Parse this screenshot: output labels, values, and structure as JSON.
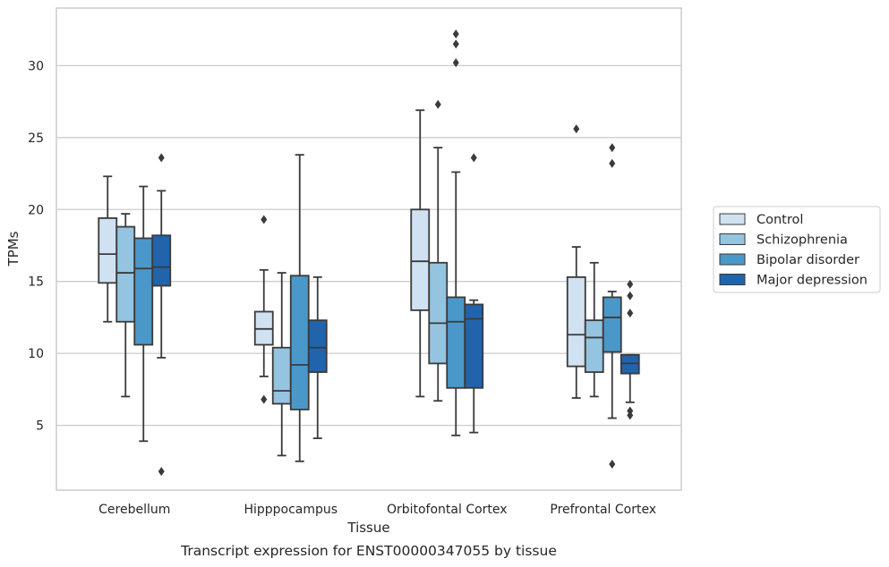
{
  "chart_data": {
    "type": "box",
    "caption": "Transcript expression for ENST00000347055 by tissue",
    "xlabel": "Tissue",
    "ylabel": "TPMs",
    "ylim": [
      0.5,
      34.0
    ],
    "yticks": [
      5,
      10,
      15,
      20,
      25,
      30
    ],
    "grid": "horizontal",
    "legend_position": "right",
    "categories": [
      "Cerebellum",
      "Hipppocampus",
      "Orbitofontal Cortex",
      "Prefrontal Cortex"
    ],
    "series": [
      {
        "name": "Control",
        "color": "#d0e1f2",
        "boxes": [
          {
            "whisker_low": 12.2,
            "q1": 14.9,
            "median": 16.9,
            "q3": 19.4,
            "whisker_high": 22.3,
            "outliers": []
          },
          {
            "whisker_low": 8.4,
            "q1": 10.6,
            "median": 11.7,
            "q3": 12.9,
            "whisker_high": 15.8,
            "outliers": [
              19.3,
              6.8
            ]
          },
          {
            "whisker_low": 7.0,
            "q1": 13.0,
            "median": 16.4,
            "q3": 20.0,
            "whisker_high": 26.9,
            "outliers": []
          },
          {
            "whisker_low": 6.9,
            "q1": 9.1,
            "median": 11.3,
            "q3": 15.3,
            "whisker_high": 17.4,
            "outliers": [
              25.6
            ]
          }
        ]
      },
      {
        "name": "Schizophrenia",
        "color": "#94c4df",
        "boxes": [
          {
            "whisker_low": 7.0,
            "q1": 12.2,
            "median": 15.6,
            "q3": 18.8,
            "whisker_high": 19.7,
            "outliers": []
          },
          {
            "whisker_low": 2.9,
            "q1": 6.5,
            "median": 7.4,
            "q3": 10.4,
            "whisker_high": 15.6,
            "outliers": []
          },
          {
            "whisker_low": 6.7,
            "q1": 9.3,
            "median": 12.1,
            "q3": 16.3,
            "whisker_high": 24.3,
            "outliers": [
              27.3
            ]
          },
          {
            "whisker_low": 7.0,
            "q1": 8.7,
            "median": 11.1,
            "q3": 12.3,
            "whisker_high": 16.3,
            "outliers": []
          }
        ]
      },
      {
        "name": "Bipolar disorder",
        "color": "#4a98c9",
        "boxes": [
          {
            "whisker_low": 3.9,
            "q1": 10.6,
            "median": 15.9,
            "q3": 18.0,
            "whisker_high": 21.6,
            "outliers": []
          },
          {
            "whisker_low": 2.5,
            "q1": 6.1,
            "median": 9.2,
            "q3": 15.4,
            "whisker_high": 23.8,
            "outliers": []
          },
          {
            "whisker_low": 4.3,
            "q1": 7.6,
            "median": 12.2,
            "q3": 13.9,
            "whisker_high": 22.6,
            "outliers": [
              30.2,
              31.5,
              32.2
            ]
          },
          {
            "whisker_low": 5.5,
            "q1": 10.1,
            "median": 12.5,
            "q3": 13.9,
            "whisker_high": 14.3,
            "outliers": [
              24.3,
              23.2,
              2.3
            ]
          }
        ]
      },
      {
        "name": "Major depression",
        "color": "#2264ab",
        "boxes": [
          {
            "whisker_low": 9.7,
            "q1": 14.7,
            "median": 16.0,
            "q3": 18.2,
            "whisker_high": 21.3,
            "outliers": [
              23.6,
              1.8
            ]
          },
          {
            "whisker_low": 4.1,
            "q1": 8.7,
            "median": 10.4,
            "q3": 12.3,
            "whisker_high": 15.3,
            "outliers": []
          },
          {
            "whisker_low": 4.5,
            "q1": 7.6,
            "median": 12.4,
            "q3": 13.4,
            "whisker_high": 13.7,
            "outliers": [
              23.6
            ]
          },
          {
            "whisker_low": 6.6,
            "q1": 8.6,
            "median": 9.3,
            "q3": 9.9,
            "whisker_high": 9.9,
            "outliers": [
              14.8,
              14.0,
              12.8,
              6.0,
              5.7
            ]
          }
        ]
      }
    ]
  },
  "colors": {
    "grid": "#cccccc",
    "frame": "#cccccc",
    "line": "#3a3a3a"
  }
}
